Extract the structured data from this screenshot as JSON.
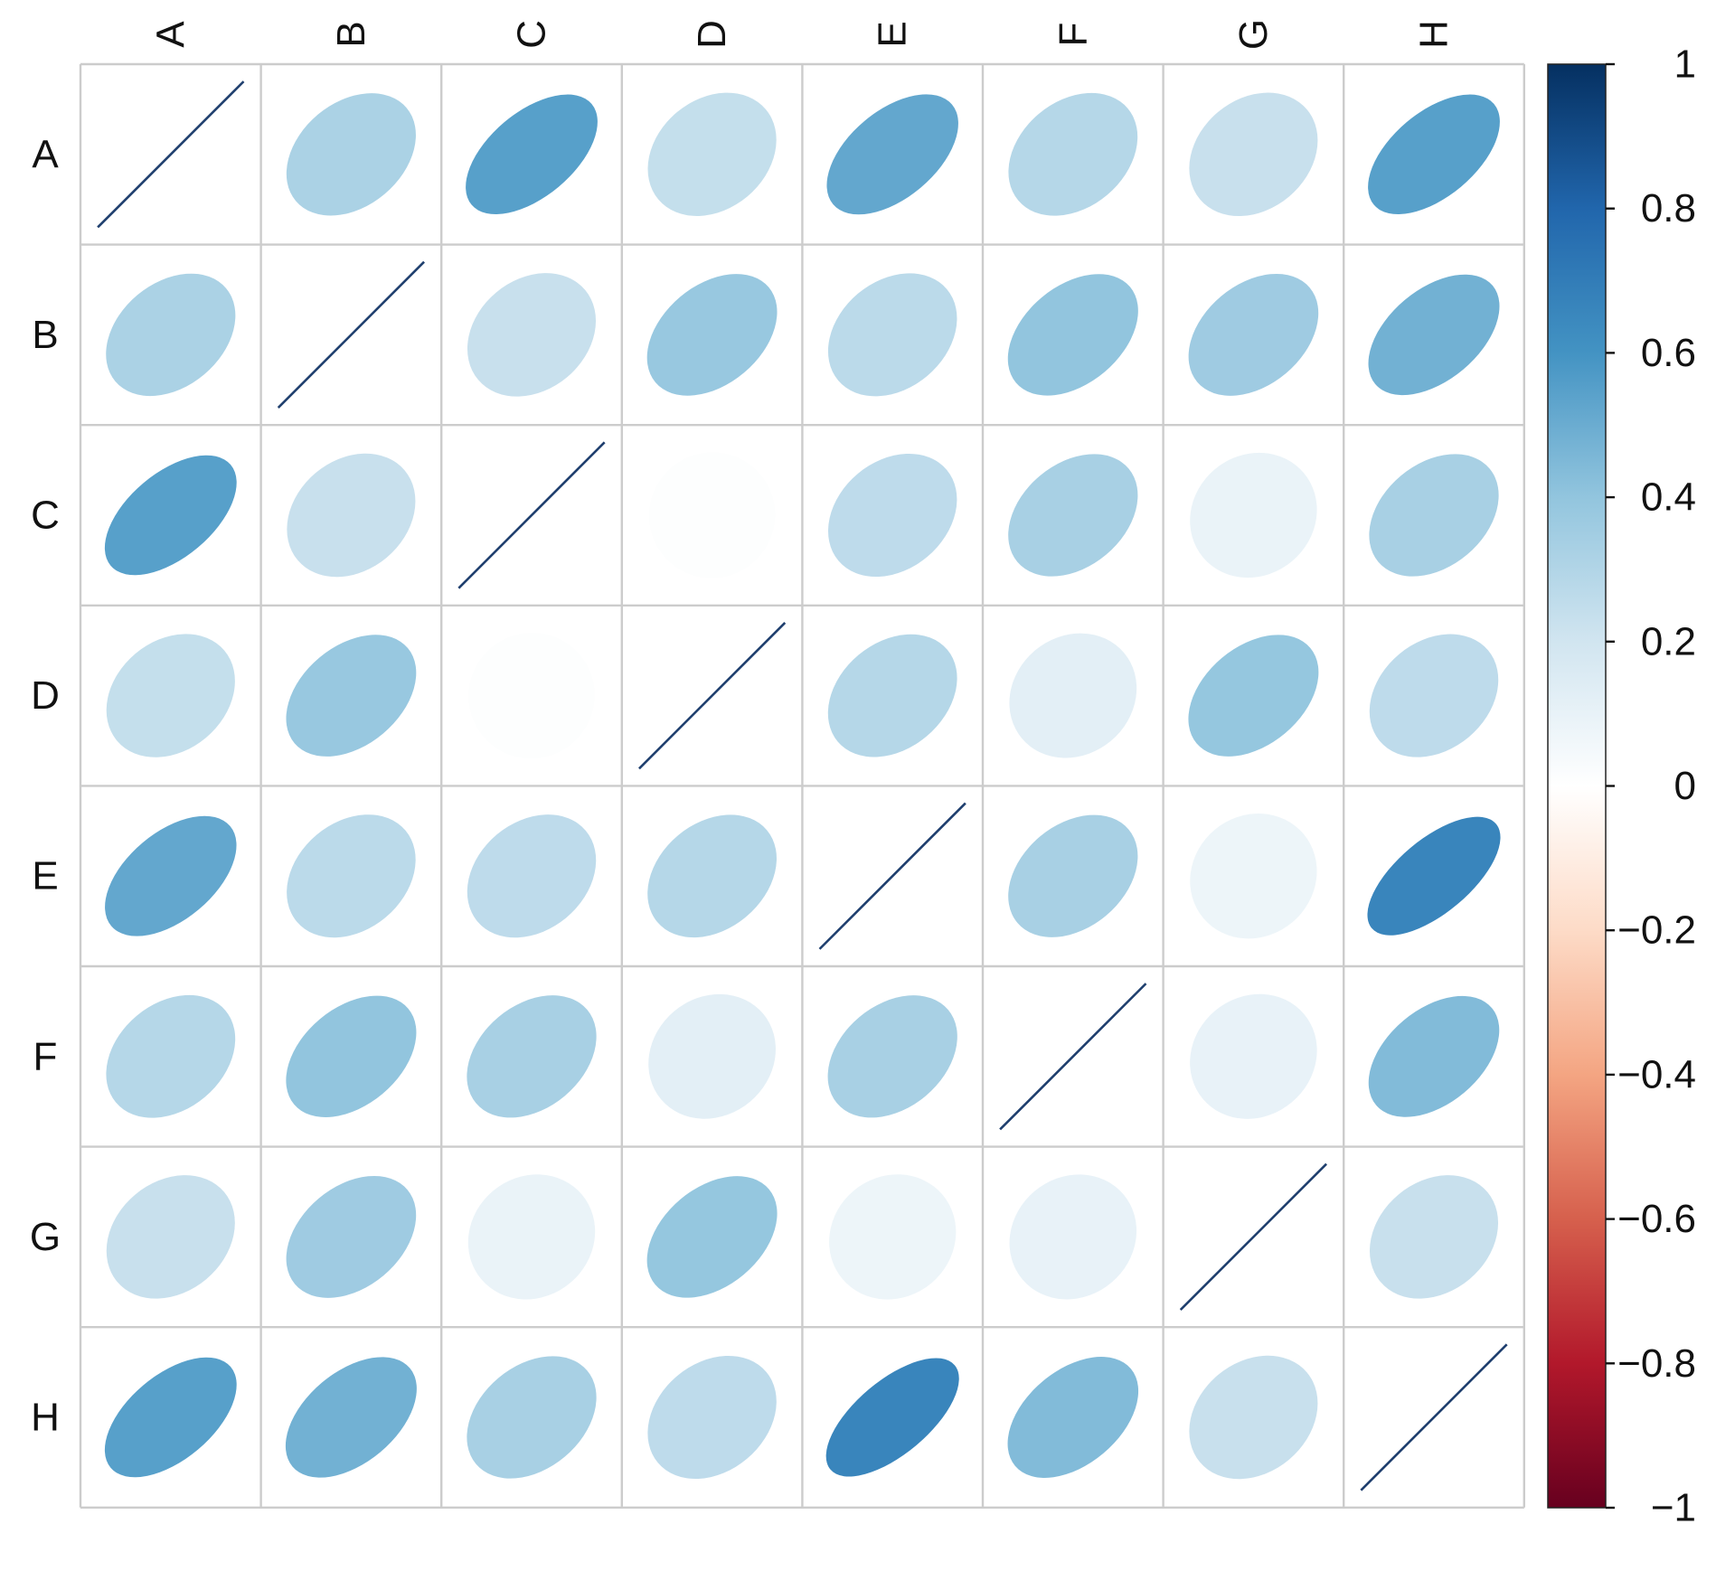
{
  "chart_data": {
    "type": "heatmap",
    "subtype": "correlation-matrix-ellipse",
    "row_labels": [
      "A",
      "B",
      "C",
      "D",
      "E",
      "F",
      "G",
      "H"
    ],
    "col_labels": [
      "A",
      "B",
      "C",
      "D",
      "E",
      "F",
      "G",
      "H"
    ],
    "matrix": [
      [
        1.0,
        0.32,
        0.55,
        0.24,
        0.52,
        0.29,
        0.23,
        0.55
      ],
      [
        0.32,
        1.0,
        0.23,
        0.38,
        0.27,
        0.4,
        0.36,
        0.48
      ],
      [
        0.55,
        0.23,
        1.0,
        0.01,
        0.26,
        0.33,
        0.09,
        0.33
      ],
      [
        0.24,
        0.38,
        0.01,
        1.0,
        0.29,
        0.12,
        0.39,
        0.26
      ],
      [
        0.52,
        0.27,
        0.26,
        0.29,
        1.0,
        0.33,
        0.08,
        0.66
      ],
      [
        0.29,
        0.4,
        0.33,
        0.12,
        0.33,
        1.0,
        0.1,
        0.44
      ],
      [
        0.23,
        0.36,
        0.09,
        0.39,
        0.08,
        0.1,
        1.0,
        0.23
      ],
      [
        0.55,
        0.48,
        0.33,
        0.26,
        0.66,
        0.44,
        0.23,
        1.0
      ]
    ],
    "colorbar": {
      "min": -1,
      "max": 1,
      "ticks": [
        1,
        0.8,
        0.6,
        0.4,
        0.2,
        0,
        -0.2,
        -0.4,
        -0.6,
        -0.8,
        -1
      ],
      "tick_labels": [
        "1",
        "0.8",
        "0.6",
        "0.4",
        "0.2",
        "0",
        "−0.2",
        "−0.4",
        "−0.6",
        "−0.8",
        "−1"
      ],
      "palette": [
        "#67001f",
        "#b2182b",
        "#d6604d",
        "#f4a582",
        "#fddbc7",
        "#ffffff",
        "#d1e5f0",
        "#92c5de",
        "#4393c3",
        "#2166ac",
        "#053061"
      ]
    },
    "diagonal_line_color": "#1f3f6e",
    "grid_color": "#cccccc"
  }
}
